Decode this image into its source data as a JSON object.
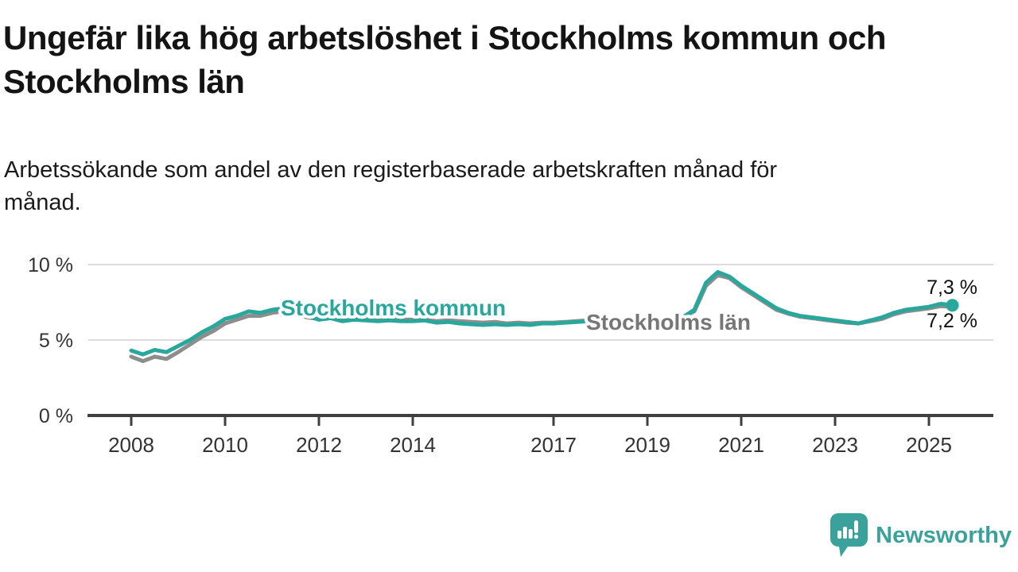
{
  "header": {
    "title_lines": [
      "Ungefär lika hög arbetslöshet i Stockholms kommun och",
      "Stockholms län"
    ],
    "subtitle_lines": [
      "Arbetssökande som andel av den registerbaserade arbetskraften månad för",
      "månad."
    ]
  },
  "chart_data": {
    "type": "line",
    "title": "Ungefär lika hög arbetslöshet i Stockholms kommun och Stockholms län",
    "subtitle": "Arbetssökande som andel av den registerbaserade arbetskraften månad för månad.",
    "unit": "%",
    "x_unit": "decimal_year",
    "xlim": [
      2007.6,
      2026.3
    ],
    "ylim": [
      0,
      10.5
    ],
    "grid": "horizontal-only",
    "legend": "inline-labels",
    "x": [
      2008,
      2008.25,
      2008.5,
      2008.75,
      2009,
      2009.25,
      2009.5,
      2009.75,
      2010,
      2010.25,
      2010.5,
      2010.75,
      2011,
      2011.25,
      2011.5,
      2011.75,
      2012,
      2012.25,
      2012.5,
      2012.75,
      2013,
      2013.25,
      2013.5,
      2013.75,
      2014,
      2014.25,
      2014.5,
      2014.75,
      2015,
      2015.25,
      2015.5,
      2015.75,
      2016,
      2016.25,
      2016.5,
      2016.75,
      2017,
      2017.25,
      2017.5,
      2017.75,
      2018,
      2018.25,
      2018.5,
      2018.75,
      2019,
      2019.25,
      2019.5,
      2019.75,
      2020,
      2020.25,
      2020.5,
      2020.75,
      2021,
      2021.25,
      2021.5,
      2021.75,
      2022,
      2022.25,
      2022.5,
      2022.75,
      2023,
      2023.25,
      2023.5,
      2023.75,
      2024,
      2024.25,
      2024.5,
      2024.75,
      2025,
      2025.25,
      2025.5
    ],
    "series": [
      {
        "name": "Stockholms kommun",
        "color": "#2aa79c",
        "label_color": "#2aa79c",
        "end_label": "7,3 %",
        "end_value": 7.3,
        "values": [
          4.3,
          4.05,
          4.35,
          4.2,
          4.6,
          5.0,
          5.5,
          5.9,
          6.4,
          6.6,
          6.9,
          6.8,
          7.0,
          7.1,
          6.9,
          6.6,
          6.35,
          6.45,
          6.25,
          6.35,
          6.3,
          6.25,
          6.3,
          6.25,
          6.25,
          6.3,
          6.15,
          6.2,
          6.1,
          6.05,
          6.0,
          6.05,
          6.0,
          6.05,
          6.0,
          6.1,
          6.1,
          6.15,
          6.2,
          6.25,
          6.3,
          6.25,
          6.25,
          6.3,
          6.3,
          6.35,
          6.4,
          6.5,
          7.0,
          8.8,
          9.5,
          9.2,
          8.6,
          8.1,
          7.6,
          7.1,
          6.8,
          6.6,
          6.5,
          6.4,
          6.3,
          6.2,
          6.1,
          6.3,
          6.5,
          6.8,
          7.0,
          7.1,
          7.2,
          7.4,
          7.3
        ]
      },
      {
        "name": "Stockholms län",
        "color": "#8d8d8d",
        "label_color": "#767676",
        "end_label": "7,2 %",
        "end_value": 7.2,
        "values": [
          3.9,
          3.6,
          3.9,
          3.75,
          4.2,
          4.7,
          5.2,
          5.6,
          6.1,
          6.35,
          6.6,
          6.6,
          6.8,
          6.9,
          6.7,
          6.5,
          6.4,
          6.45,
          6.3,
          6.4,
          6.4,
          6.35,
          6.4,
          6.35,
          6.35,
          6.4,
          6.25,
          6.3,
          6.25,
          6.2,
          6.15,
          6.2,
          6.1,
          6.15,
          6.1,
          6.15,
          6.15,
          6.2,
          6.25,
          6.3,
          6.3,
          6.25,
          6.25,
          6.3,
          6.3,
          6.35,
          6.4,
          6.5,
          6.9,
          8.6,
          9.3,
          9.1,
          8.5,
          8.0,
          7.5,
          7.0,
          6.75,
          6.55,
          6.45,
          6.35,
          6.25,
          6.15,
          6.1,
          6.25,
          6.4,
          6.7,
          6.9,
          7.0,
          7.1,
          7.25,
          7.2
        ]
      }
    ],
    "yticks": [
      {
        "value": 0,
        "label": "0 %"
      },
      {
        "value": 5,
        "label": "5 %"
      },
      {
        "value": 10,
        "label": "10 %"
      }
    ],
    "xticks": [
      {
        "value": 2008,
        "label": "2008"
      },
      {
        "value": 2010,
        "label": "2010"
      },
      {
        "value": 2012,
        "label": "2012"
      },
      {
        "value": 2014,
        "label": "2014"
      },
      {
        "value": 2017,
        "label": "2017"
      },
      {
        "value": 2019,
        "label": "2019"
      },
      {
        "value": 2021,
        "label": "2021"
      },
      {
        "value": 2023,
        "label": "2023"
      },
      {
        "value": 2025,
        "label": "2025"
      }
    ]
  },
  "footer": {
    "brand": "Newsworthy",
    "brand_color": "#3aa29a",
    "logo_icon": "speech-bubble-bar-chart-icon"
  }
}
